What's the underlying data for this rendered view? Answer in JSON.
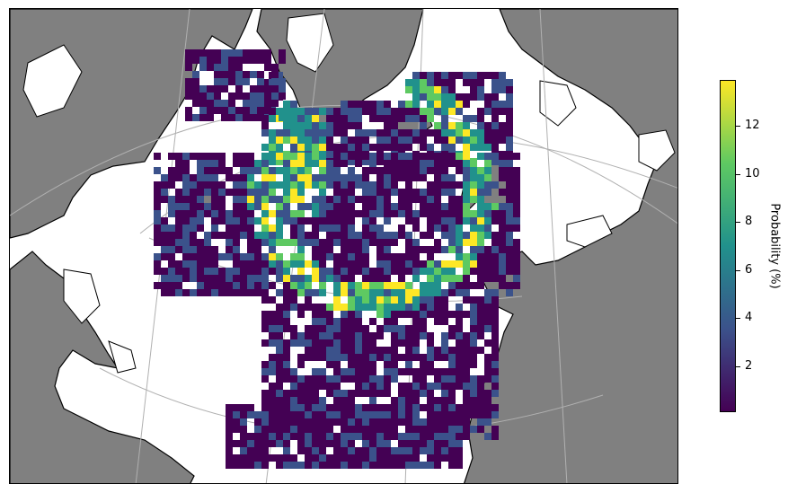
{
  "colorbar": {
    "label": "Probability (%)",
    "ticks": [
      "2",
      "4",
      "6",
      "8",
      "10",
      "12"
    ],
    "tick_values": [
      2,
      4,
      6,
      8,
      10,
      12
    ],
    "min": 0.1,
    "max": 13.9,
    "colormap": "viridis",
    "colors": [
      "#440154",
      "#3b528b",
      "#21918c",
      "#5ec962",
      "#fde725"
    ]
  },
  "map": {
    "land_color": "#808080",
    "ocean_color": "#ffffff",
    "coastline_color": "#000000",
    "gridline_color": "#b0b0b0",
    "region": "North Atlantic"
  }
}
